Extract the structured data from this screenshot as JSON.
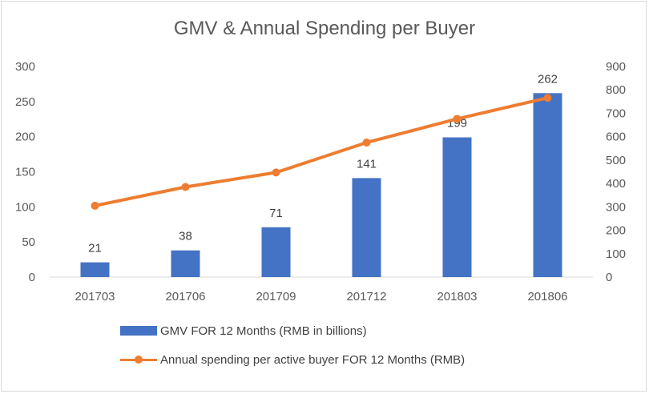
{
  "chart_data": {
    "type": "bar",
    "title": "GMV & Annual Spending per Buyer",
    "categories": [
      "201703",
      "201706",
      "201709",
      "201712",
      "201803",
      "201806"
    ],
    "series": [
      {
        "name": "GMV FOR 12 Months (RMB in billions)",
        "type": "bar",
        "axis": "left",
        "values": [
          21,
          38,
          71,
          141,
          199,
          262
        ],
        "color": "#4472c4"
      },
      {
        "name": "Annual spending per active buyer FOR 12 Months (RMB)",
        "type": "line",
        "axis": "right",
        "values": [
          305,
          385,
          447,
          575,
          676,
          766
        ],
        "color": "#ed7d31"
      }
    ],
    "ylim": [
      0,
      300
    ],
    "y2lim": [
      0,
      900
    ],
    "yticks": [
      "0",
      "50",
      "100",
      "150",
      "200",
      "250",
      "300"
    ],
    "y2ticks": [
      "0",
      "100",
      "200",
      "300",
      "400",
      "500",
      "600",
      "700",
      "800",
      "900"
    ],
    "grid": false,
    "legend_position": "bottom"
  }
}
